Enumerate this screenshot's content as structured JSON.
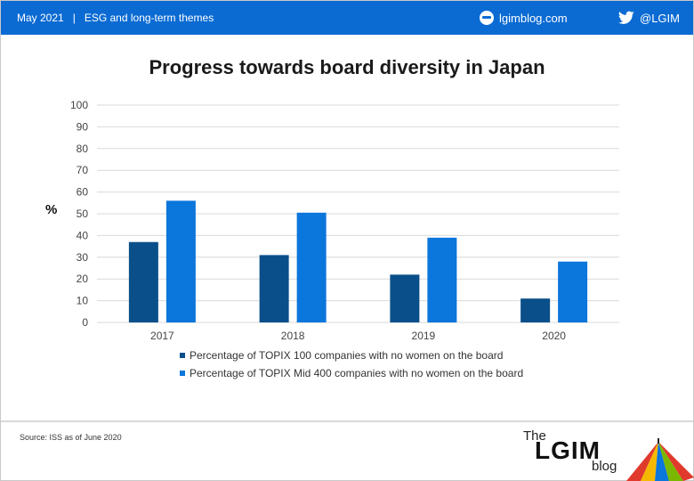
{
  "header": {
    "date": "May 2021",
    "separator": "|",
    "section": "ESG and long-term themes",
    "site": "lgimblog.com",
    "twitter": "@LGIM"
  },
  "percent_label": "%",
  "source": "Source: ISS as of June 2020",
  "logo": {
    "the": "The",
    "lgim": "LGIM",
    "blog": "blog"
  },
  "colors": {
    "header_bg": "#0b6bd3",
    "series_dark": "#0a4f8a",
    "series_light": "#0b76db",
    "grid": "#d9d9d9"
  },
  "icons": {
    "site": "globe-icon",
    "twitter": "twitter-bird-icon"
  },
  "chart_data": {
    "type": "bar",
    "title": "Progress towards board diversity in Japan",
    "xlabel": "",
    "ylabel": "%",
    "ylim": [
      0,
      100
    ],
    "yticks": [
      0,
      10,
      20,
      30,
      40,
      50,
      60,
      70,
      80,
      90,
      100
    ],
    "categories": [
      "2017",
      "2018",
      "2019",
      "2020"
    ],
    "grid": true,
    "legend_position": "bottom",
    "series": [
      {
        "name": "Percentage of TOPIX 100 companies with no women on the board",
        "color": "#0a4f8a",
        "values": [
          37,
          31,
          22,
          11
        ]
      },
      {
        "name": "Percentage of TOPIX Mid 400 companies with no women on the board",
        "color": "#0b76db",
        "values": [
          56,
          50.5,
          39,
          28
        ]
      }
    ]
  }
}
